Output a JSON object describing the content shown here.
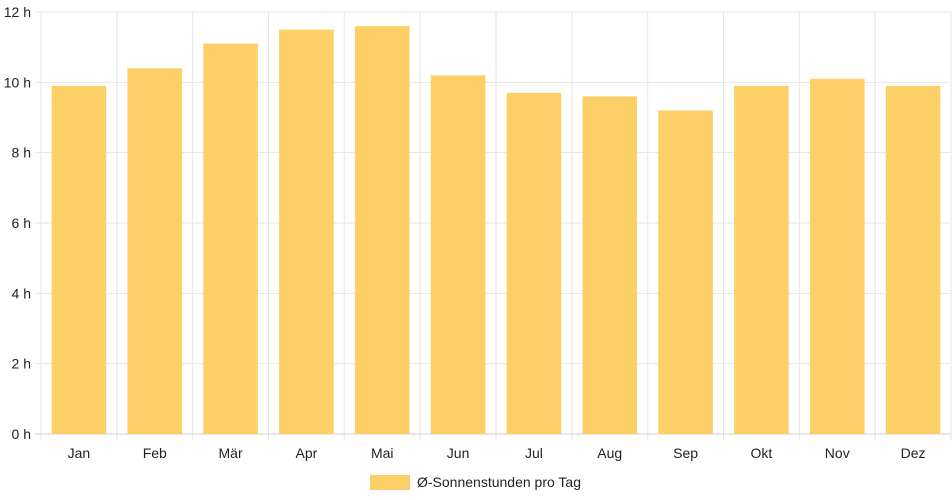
{
  "chart_data": {
    "type": "bar",
    "categories": [
      "Jan",
      "Feb",
      "Mär",
      "Apr",
      "Mai",
      "Jun",
      "Jul",
      "Aug",
      "Sep",
      "Okt",
      "Nov",
      "Dez"
    ],
    "series": [
      {
        "name": "Ø-Sonnenstunden pro Tag",
        "values": [
          9.9,
          10.4,
          11.1,
          11.5,
          11.6,
          10.2,
          9.7,
          9.6,
          9.2,
          9.9,
          10.1,
          9.9
        ],
        "color": "#fdd067"
      }
    ],
    "y_ticks": [
      "0 h",
      "2 h",
      "4 h",
      "6 h",
      "8 h",
      "10 h",
      "12 h"
    ],
    "ylim": [
      0,
      12
    ],
    "y_unit": "h",
    "grid": true,
    "legend_position": "bottom"
  }
}
